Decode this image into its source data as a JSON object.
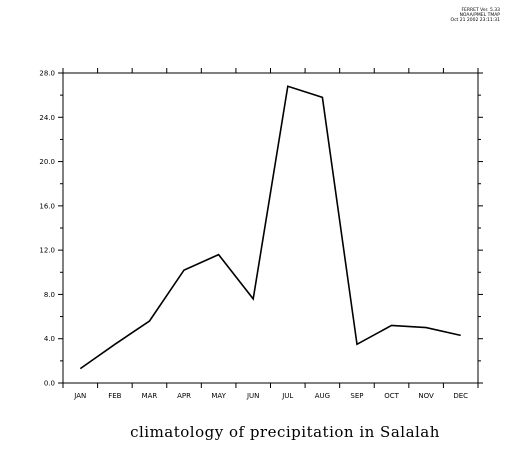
{
  "header": {
    "lines": [
      "FERRET Ver. 5.33",
      "NOAA/PMEL TMAP",
      "Oct 21 2002 23:11:31"
    ]
  },
  "chart_data": {
    "type": "line",
    "title": "climatology of precipitation in Salalah",
    "xlabel": "",
    "ylabel": "",
    "categories": [
      "JAN",
      "FEB",
      "MAR",
      "APR",
      "MAY",
      "JUN",
      "JUL",
      "AUG",
      "SEP",
      "OCT",
      "NOV",
      "DEC"
    ],
    "series": [
      {
        "values": [
          1.3,
          3.5,
          5.6,
          10.2,
          11.6,
          7.6,
          26.8,
          25.8,
          3.5,
          5.2,
          5.0,
          4.3
        ]
      }
    ],
    "ylim": [
      0,
      28
    ],
    "yticks": [
      "0.0",
      "4.0",
      "8.0",
      "12.0",
      "16.0",
      "20.0",
      "24.0",
      "28.0"
    ],
    "grid": false,
    "line_color": "#000000"
  }
}
